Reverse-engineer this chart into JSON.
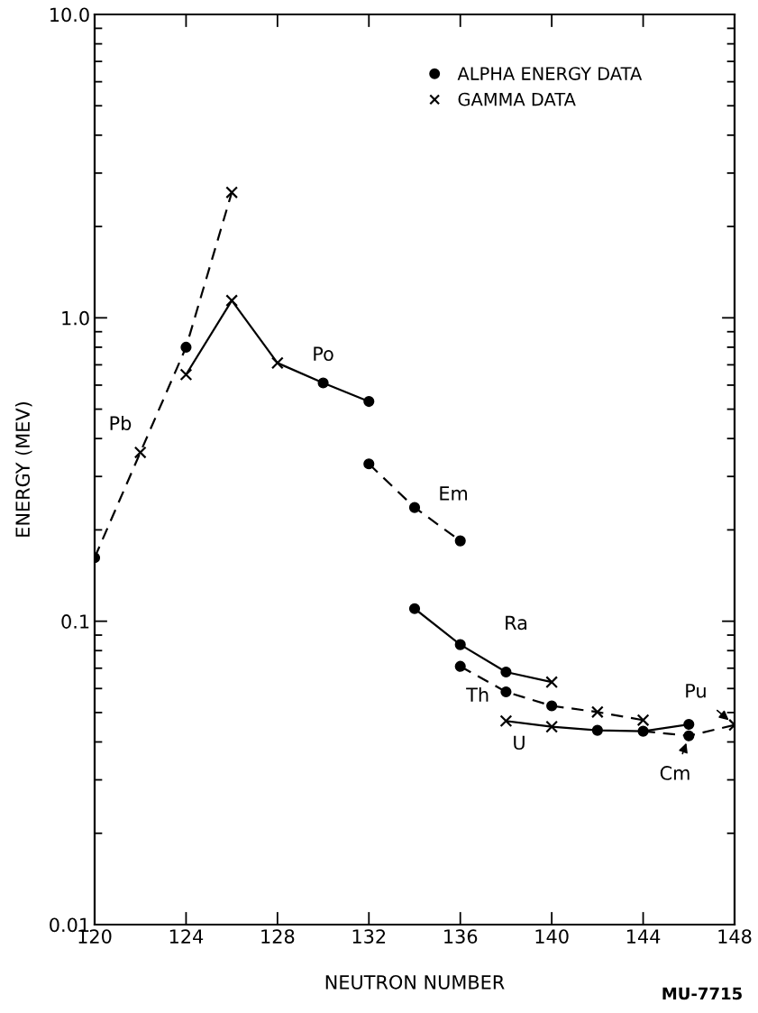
{
  "chart_data": {
    "type": "line",
    "xlabel": "NEUTRON NUMBER",
    "ylabel": "ENERGY (MEV)",
    "log": "y",
    "xlim": [
      120,
      148
    ],
    "xticks": [
      120,
      124,
      128,
      132,
      136,
      140,
      144,
      148
    ],
    "ylim": [
      0.01,
      10
    ],
    "yticks": [
      0.01,
      0.1,
      {
        "value": 1,
        "label": "1.0"
      },
      {
        "value": 10,
        "label": "10.0"
      }
    ],
    "grid": false,
    "legend": "top right",
    "marker": "none",
    "series": [
      {
        "color": "#000000",
        "line_style": "dashed",
        "x": [
          120,
          122,
          124,
          126
        ],
        "values": [
          0.162,
          0.36,
          0.8,
          2.59
        ]
      },
      {
        "color": "#000000",
        "line_style": "solid",
        "x": [
          124,
          126,
          128,
          130,
          132
        ],
        "values": [
          0.65,
          1.14,
          0.71,
          0.61,
          0.53
        ]
      },
      {
        "color": "#000000",
        "line_style": "dashed",
        "x": [
          132,
          134,
          136
        ],
        "values": [
          0.33,
          0.237,
          0.184
        ]
      },
      {
        "color": "#000000",
        "line_style": "solid",
        "x": [
          134,
          136,
          138,
          140
        ],
        "values": [
          0.11,
          0.0837,
          0.068,
          0.063
        ]
      },
      {
        "color": "#000000",
        "line_style": "dashed",
        "x": [
          136,
          138,
          140,
          142,
          144
        ],
        "values": [
          0.071,
          0.0585,
          0.0526,
          0.0502,
          0.0472
        ]
      },
      {
        "color": "#000000",
        "line_style": "solid",
        "x": [
          138,
          140,
          142,
          144,
          146
        ],
        "values": [
          0.0469,
          0.0449,
          0.0437,
          0.0434,
          0.0457
        ]
      },
      {
        "color": "#000000",
        "line_style": "dashed",
        "x": [
          144,
          146,
          148
        ],
        "values": [
          0.0434,
          0.0419,
          0.0455
        ]
      },
      {
        "type": "scatter",
        "name": "ALPHA ENERGY DATA",
        "color": "#000000",
        "marker": "circle",
        "x": [
          120,
          124,
          130,
          132,
          132,
          134,
          136,
          134,
          136,
          138,
          136,
          138,
          140,
          142,
          144,
          146,
          146
        ],
        "values": [
          0.162,
          0.8,
          0.61,
          0.53,
          0.33,
          0.237,
          0.184,
          0.11,
          0.0837,
          0.068,
          0.071,
          0.0585,
          0.0526,
          0.0437,
          0.0434,
          0.0457,
          0.0419
        ]
      },
      {
        "type": "scatter",
        "name": "GAMMA DATA",
        "color": "#000000",
        "marker": "cross",
        "x": [
          122,
          126,
          124,
          126,
          128,
          140,
          142,
          144,
          138,
          140,
          148
        ],
        "values": [
          0.36,
          2.59,
          0.65,
          1.14,
          0.71,
          0.063,
          0.0502,
          0.0472,
          0.0469,
          0.0449,
          0.0455
        ]
      }
    ],
    "annotations": [
      {
        "text": "Pb",
        "x": 122,
        "y": 0.36
      },
      {
        "text": "Po",
        "x": 130,
        "y": 0.61
      },
      {
        "text": "Em",
        "x": 134,
        "y": 0.237
      },
      {
        "text": "Ra",
        "x": 138,
        "y": 0.068
      },
      {
        "text": "Th",
        "x": 136,
        "y": 0.071
      },
      {
        "text": "U",
        "x": 140,
        "y": 0.0449
      },
      {
        "text": "Pu",
        "x": 148,
        "y": 0.0455
      },
      {
        "text": "Cm",
        "x": 146,
        "y": 0.0419
      },
      "MU-7715"
    ]
  }
}
